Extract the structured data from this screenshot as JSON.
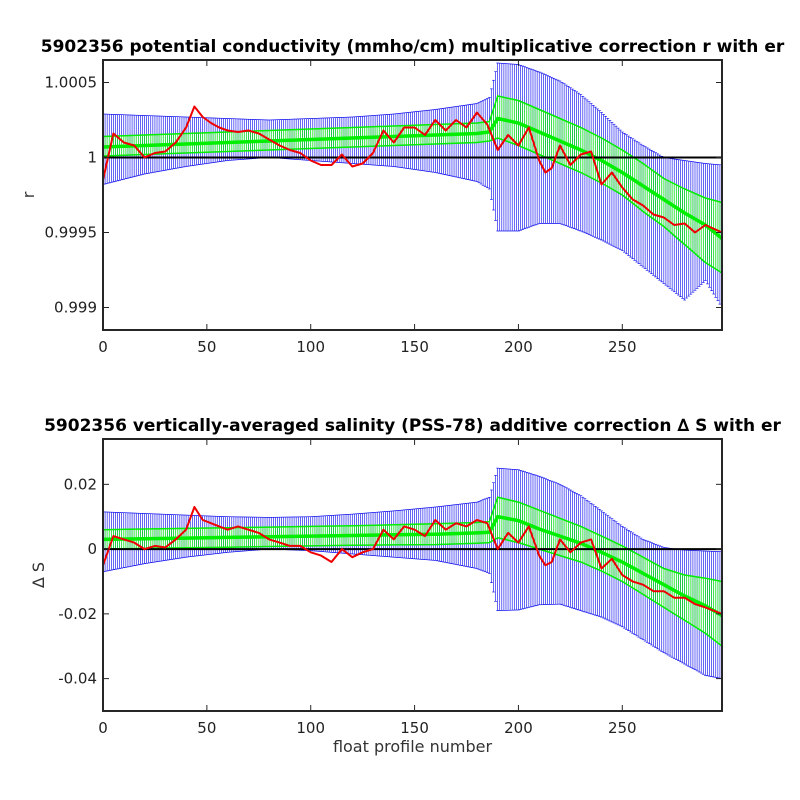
{
  "chart_data": [
    {
      "type": "line",
      "title": "5902356 potential conductivity (mmho/cm) multiplicative correction r with er",
      "xlabel": "",
      "ylabel": "r",
      "xlim": [
        0,
        298
      ],
      "ylim": [
        0.99885,
        1.00065
      ],
      "xticks": [
        0,
        50,
        100,
        150,
        200,
        250
      ],
      "xtick_labels": [
        "0",
        "50",
        "100",
        "150",
        "200",
        "250"
      ],
      "yticks": [
        0.999,
        0.9995,
        1,
        1.0005
      ],
      "ytick_labels": [
        "0.999",
        "0.9995",
        "1",
        "1.0005"
      ],
      "grid": false,
      "reference_line": 1,
      "colors": {
        "error_bars": "#0000ee",
        "fit": "#00ee00",
        "data": "#ee0000",
        "reference": "#000000"
      },
      "series": [
        {
          "role": "blue error band",
          "x": [
            0,
            20,
            40,
            60,
            80,
            100,
            120,
            140,
            160,
            180,
            186,
            190,
            200,
            210,
            220,
            230,
            240,
            250,
            260,
            270,
            280,
            290,
            298
          ],
          "upper": [
            1.00029,
            1.00028,
            1.00027,
            1.00026,
            1.00025,
            1.00026,
            1.00027,
            1.00029,
            1.00032,
            1.00036,
            1.0004,
            1.00063,
            1.00062,
            1.00057,
            1.00051,
            1.00042,
            1.0003,
            1.00017,
            1.00008,
            1.0,
            0.99998,
            0.99996,
            0.99995
          ],
          "lower": [
            0.99982,
            0.99989,
            0.99994,
            0.99998,
            1.0,
            0.99998,
            0.99996,
            0.99994,
            0.9999,
            0.99984,
            0.99979,
            0.99951,
            0.99951,
            0.99956,
            0.99956,
            0.99951,
            0.99945,
            0.99938,
            0.99927,
            0.99916,
            0.99905,
            0.99918,
            0.999
          ]
        },
        {
          "role": "green fit band",
          "x": [
            0,
            20,
            40,
            60,
            80,
            100,
            120,
            140,
            160,
            180,
            186,
            190,
            200,
            210,
            220,
            230,
            240,
            250,
            260,
            270,
            280,
            290,
            298
          ],
          "upper": [
            1.00014,
            1.00015,
            1.00016,
            1.00017,
            1.00018,
            1.00019,
            1.0002,
            1.00021,
            1.00022,
            1.00023,
            1.00024,
            1.00041,
            1.00038,
            1.00032,
            1.00026,
            1.0002,
            1.00013,
            1.00005,
            0.99996,
            0.99986,
            0.99979,
            0.99973,
            0.9997
          ],
          "mid": [
            1.00007,
            1.00008,
            1.00009,
            1.0001,
            1.00011,
            1.00012,
            1.00013,
            1.00014,
            1.00015,
            1.00016,
            1.00017,
            1.00026,
            1.00023,
            1.00017,
            1.00011,
            1.00005,
            0.99998,
            0.9999,
            0.99981,
            0.99972,
            0.99963,
            0.99955,
            0.99946
          ],
          "lower": [
            1.00001,
            1.00002,
            1.00003,
            1.00004,
            1.00005,
            1.00006,
            1.00007,
            1.00008,
            1.00009,
            1.0001,
            1.00011,
            1.00013,
            1.00008,
            1.00002,
            0.99996,
            0.9999,
            0.99983,
            0.99975,
            0.99964,
            0.99954,
            0.99942,
            0.9993,
            0.99923
          ]
        },
        {
          "role": "red data",
          "x": [
            0,
            5,
            10,
            15,
            20,
            25,
            30,
            35,
            40,
            44,
            48,
            52,
            56,
            60,
            65,
            70,
            75,
            80,
            85,
            90,
            95,
            100,
            105,
            110,
            115,
            120,
            125,
            130,
            135,
            140,
            145,
            150,
            155,
            160,
            165,
            170,
            175,
            180,
            185,
            190,
            195,
            200,
            205,
            210,
            213,
            216,
            220,
            225,
            230,
            235,
            240,
            245,
            250,
            255,
            260,
            265,
            270,
            275,
            280,
            285,
            290,
            298
          ],
          "y": [
            0.99985,
            1.00016,
            1.0001,
            1.00008,
            1.0,
            1.00003,
            1.00004,
            1.0001,
            1.0002,
            1.00034,
            1.00027,
            1.00023,
            1.0002,
            1.00018,
            1.00017,
            1.00018,
            1.00016,
            1.00012,
            1.00008,
            1.00005,
            1.00003,
            0.99998,
            0.99995,
            0.99995,
            1.00002,
            0.99994,
            0.99996,
            1.00003,
            1.00018,
            1.0001,
            1.0002,
            1.0002,
            1.00015,
            1.00025,
            1.00018,
            1.00025,
            1.0002,
            1.0003,
            1.00022,
            1.00005,
            1.00015,
            1.00008,
            1.0002,
            0.99998,
            0.9999,
            0.99993,
            1.00008,
            0.99995,
            1.00002,
            1.00004,
            0.99982,
            0.9999,
            0.9998,
            0.99972,
            0.99968,
            0.99962,
            0.9996,
            0.99955,
            0.99956,
            0.9995,
            0.99955,
            0.9995
          ]
        }
      ]
    },
    {
      "type": "line",
      "title": "5902356 vertically-averaged salinity (PSS-78) additive correction ∆ S with er",
      "xlabel": "float profile number",
      "ylabel": "∆ S",
      "xlim": [
        0,
        298
      ],
      "ylim": [
        -0.05,
        0.034
      ],
      "xticks": [
        0,
        50,
        100,
        150,
        200,
        250
      ],
      "xtick_labels": [
        "0",
        "50",
        "100",
        "150",
        "200",
        "250"
      ],
      "yticks": [
        -0.04,
        -0.02,
        0,
        0.02
      ],
      "ytick_labels": [
        "-0.04",
        "-0.02",
        "0",
        "0.02"
      ],
      "grid": false,
      "reference_line": 0,
      "colors": {
        "error_bars": "#0000ee",
        "fit": "#00ee00",
        "data": "#ee0000",
        "reference": "#000000"
      },
      "series": [
        {
          "role": "blue error band",
          "x": [
            0,
            20,
            40,
            60,
            80,
            100,
            120,
            140,
            160,
            180,
            186,
            190,
            200,
            210,
            220,
            230,
            240,
            250,
            260,
            270,
            280,
            290,
            298
          ],
          "upper": [
            0.0115,
            0.011,
            0.0105,
            0.01,
            0.0098,
            0.01,
            0.0108,
            0.0118,
            0.013,
            0.0145,
            0.016,
            0.025,
            0.0245,
            0.0225,
            0.02,
            0.0165,
            0.0118,
            0.007,
            0.003,
            0.0005,
            -0.0003,
            -0.0006,
            -0.0008
          ],
          "lower": [
            -0.007,
            -0.0045,
            -0.0025,
            -0.001,
            0.0,
            -0.0005,
            -0.0015,
            -0.0025,
            -0.0035,
            -0.006,
            -0.0075,
            -0.019,
            -0.0188,
            -0.0172,
            -0.017,
            -0.019,
            -0.021,
            -0.024,
            -0.028,
            -0.032,
            -0.0355,
            -0.039,
            -0.04
          ]
        },
        {
          "role": "green fit band",
          "x": [
            0,
            20,
            40,
            60,
            80,
            100,
            120,
            140,
            160,
            180,
            186,
            190,
            200,
            210,
            220,
            230,
            240,
            250,
            260,
            270,
            280,
            290,
            298
          ],
          "upper": [
            0.006,
            0.0062,
            0.0064,
            0.0066,
            0.0068,
            0.007,
            0.0072,
            0.0075,
            0.0078,
            0.0082,
            0.0085,
            0.016,
            0.0145,
            0.012,
            0.0095,
            0.007,
            0.004,
            0.001,
            -0.0025,
            -0.006,
            -0.008,
            -0.009,
            -0.01
          ],
          "mid": [
            0.003,
            0.0032,
            0.0034,
            0.0036,
            0.0038,
            0.004,
            0.0042,
            0.0044,
            0.0046,
            0.005,
            0.0052,
            0.01,
            0.0088,
            0.0062,
            0.004,
            0.0018,
            -0.001,
            -0.004,
            -0.0075,
            -0.011,
            -0.0145,
            -0.0175,
            -0.0205
          ],
          "lower": [
            0.0,
            0.0002,
            0.0004,
            0.0006,
            0.0008,
            0.001,
            0.0012,
            0.0013,
            0.0014,
            0.0018,
            0.002,
            0.0035,
            0.002,
            0.0,
            -0.002,
            -0.004,
            -0.0068,
            -0.01,
            -0.014,
            -0.018,
            -0.022,
            -0.026,
            -0.03
          ]
        },
        {
          "role": "red data",
          "x": [
            0,
            5,
            10,
            15,
            20,
            25,
            30,
            35,
            40,
            44,
            48,
            52,
            56,
            60,
            65,
            70,
            75,
            80,
            85,
            90,
            95,
            100,
            105,
            110,
            115,
            120,
            125,
            130,
            135,
            140,
            145,
            150,
            155,
            160,
            165,
            170,
            175,
            180,
            185,
            190,
            195,
            200,
            205,
            210,
            213,
            216,
            220,
            225,
            230,
            235,
            240,
            245,
            250,
            255,
            260,
            265,
            270,
            275,
            280,
            285,
            290,
            298
          ],
          "y": [
            -0.005,
            0.004,
            0.003,
            0.002,
            0.0,
            0.001,
            0.0005,
            0.003,
            0.006,
            0.013,
            0.009,
            0.008,
            0.007,
            0.006,
            0.007,
            0.006,
            0.005,
            0.003,
            0.002,
            0.001,
            0.001,
            -0.001,
            -0.002,
            -0.004,
            0.0,
            -0.0025,
            -0.001,
            0.0,
            0.006,
            0.003,
            0.007,
            0.006,
            0.004,
            0.009,
            0.006,
            0.008,
            0.007,
            0.009,
            0.008,
            0.0,
            0.005,
            0.002,
            0.007,
            -0.002,
            -0.005,
            -0.004,
            0.003,
            -0.001,
            0.002,
            0.003,
            -0.006,
            -0.003,
            -0.008,
            -0.01,
            -0.011,
            -0.013,
            -0.013,
            -0.015,
            -0.015,
            -0.017,
            -0.018,
            -0.02
          ]
        }
      ]
    }
  ]
}
